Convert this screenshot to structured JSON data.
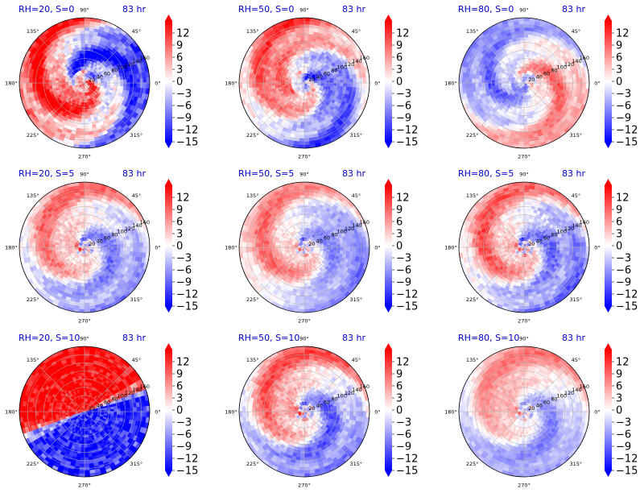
{
  "chart_data": [
    {
      "type": "heatmap",
      "title": "RH=20, S=0",
      "time_label": "83 hr",
      "mode": "vortex",
      "seed": 11,
      "strength": 1.05,
      "hot_sector": [
        225,
        360
      ],
      "cold_sector": [
        90,
        200
      ],
      "inner_sign": 1
    },
    {
      "type": "heatmap",
      "title": "RH=50, S=0",
      "time_label": "83 hr",
      "mode": "center",
      "seed": 23,
      "strength": 0.75,
      "hot_sector": [
        180,
        330
      ],
      "cold_sector": [
        30,
        120
      ],
      "inner_sign": -1
    },
    {
      "type": "heatmap",
      "title": "RH=80, S=0",
      "time_label": "83 hr",
      "mode": "center",
      "seed": 37,
      "strength": 0.6,
      "hot_sector": [
        40,
        120
      ],
      "cold_sector": [
        200,
        330
      ],
      "inner_sign": -1
    },
    {
      "type": "heatmap",
      "title": "RH=20, S=5",
      "time_label": "83 hr",
      "mode": "dipole",
      "seed": 41,
      "strength": 0.7,
      "dipole_angle": 210,
      "spread": 0.45
    },
    {
      "type": "heatmap",
      "title": "RH=50, S=5",
      "time_label": "83 hr",
      "mode": "dipole",
      "seed": 53,
      "strength": 0.6,
      "dipole_angle": 235,
      "spread": 0.6
    },
    {
      "type": "heatmap",
      "title": "RH=80, S=5",
      "time_label": "83 hr",
      "mode": "dipole",
      "seed": 67,
      "strength": 0.75,
      "dipole_angle": 225,
      "spread": 0.5
    },
    {
      "type": "heatmap",
      "title": "RH=20, S=10",
      "time_label": "83 hr",
      "mode": "split",
      "seed": 71,
      "strength": 1.0,
      "split_angle": 22
    },
    {
      "type": "heatmap",
      "title": "RH=50, S=10",
      "time_label": "83 hr",
      "mode": "dipole",
      "seed": 83,
      "strength": 0.75,
      "dipole_angle": 200,
      "spread": 0.55
    },
    {
      "type": "heatmap",
      "title": "RH=80, S=10",
      "time_label": "83 hr",
      "mode": "dipole",
      "seed": 97,
      "strength": 0.5,
      "dipole_angle": 190,
      "spread": 0.7
    }
  ],
  "axes": {
    "theta_labels": [
      "0°",
      "45°",
      "90°",
      "135°",
      "180°",
      "225°",
      "270°",
      "315°"
    ],
    "r_labels": [
      "20",
      "40",
      "60",
      "80",
      "100",
      "120",
      "140",
      "160"
    ],
    "r_max": 160,
    "r_label_angle_deg": 22.5
  },
  "colorbar": {
    "ticks": [
      "12",
      "9",
      "6",
      "3",
      "0",
      "−3",
      "−6",
      "−9",
      "−12",
      "−15"
    ],
    "vmin": -15,
    "vmax": 15,
    "extend": "both"
  },
  "colormap": {
    "low": "#0000ff",
    "mid": "#ffffff",
    "high": "#ff0000"
  }
}
